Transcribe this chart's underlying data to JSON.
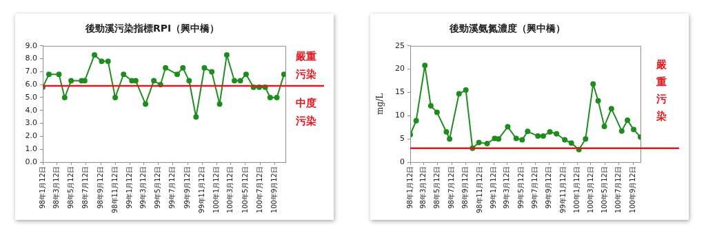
{
  "chart_data": [
    {
      "type": "line",
      "title": "後勁溪污染指標RPI（興中橋）",
      "color": "#1e8c1e",
      "marker": "circle",
      "grid": false,
      "legend": false,
      "x": [
        "2009-01-12",
        "2009-02-07",
        "2009-03-21",
        "2009-04-14",
        "2009-05-11",
        "2009-06-24",
        "2009-07-07",
        "2009-08-17",
        "2009-09-16",
        "2009-10-13",
        "2009-11-12",
        "2009-12-17",
        "2010-01-21",
        "2010-02-06",
        "2010-03-19",
        "2010-04-23",
        "2010-05-21",
        "2010-06-11",
        "2010-07-30",
        "2010-08-23",
        "2010-09-18",
        "2010-10-17",
        "2010-11-21",
        "2010-12-22",
        "2011-01-24",
        "2011-02-23",
        "2011-03-27",
        "2011-04-21",
        "2011-05-15",
        "2011-06-15",
        "2011-07-09",
        "2011-08-03",
        "2011-08-24",
        "2011-09-21",
        "2011-10-21"
      ],
      "values": [
        5.8,
        6.8,
        6.8,
        5.0,
        6.3,
        6.3,
        6.3,
        8.3,
        7.8,
        7.8,
        5.0,
        6.8,
        6.3,
        6.3,
        4.5,
        6.3,
        6.0,
        7.3,
        6.8,
        7.3,
        6.3,
        3.5,
        7.3,
        7.0,
        4.5,
        8.3,
        6.3,
        6.3,
        6.8,
        5.8,
        5.8,
        5.8,
        5.0,
        5.0,
        6.8
      ],
      "xlim": [
        "2009-01-12",
        "2011-10-27"
      ],
      "xticks": [
        {
          "value": "2009-01-12",
          "label": "98年1月12日"
        },
        {
          "value": "2009-03-12",
          "label": "98年3月12日"
        },
        {
          "value": "2009-05-12",
          "label": "98年5月12日"
        },
        {
          "value": "2009-07-12",
          "label": "98年7月12日"
        },
        {
          "value": "2009-09-12",
          "label": "98年9月12日"
        },
        {
          "value": "2009-11-12",
          "label": "98年11月12日"
        },
        {
          "value": "2010-01-12",
          "label": "99年1月12日"
        },
        {
          "value": "2010-03-12",
          "label": "99年3月12日"
        },
        {
          "value": "2010-05-12",
          "label": "99年5月12日"
        },
        {
          "value": "2010-07-12",
          "label": "99年7月12日"
        },
        {
          "value": "2010-09-12",
          "label": "99年9月12日"
        },
        {
          "value": "2010-11-12",
          "label": "99年11月12日"
        },
        {
          "value": "2011-01-12",
          "label": "100年1月12日"
        },
        {
          "value": "2011-03-12",
          "label": "100年3月12日"
        },
        {
          "value": "2011-05-12",
          "label": "100年5月12日"
        },
        {
          "value": "2011-07-12",
          "label": "100年7月12日"
        },
        {
          "value": "2011-09-12",
          "label": "100年9月12日"
        }
      ],
      "ylim": [
        0,
        9
      ],
      "yticks": [
        {
          "value": 0,
          "label": "0.0"
        },
        {
          "value": 1,
          "label": "1.0"
        },
        {
          "value": 2,
          "label": "2.0"
        },
        {
          "value": 3,
          "label": "3.0"
        },
        {
          "value": 4,
          "label": "4.0"
        },
        {
          "value": 5,
          "label": "5.0"
        },
        {
          "value": 6,
          "label": "6.0"
        },
        {
          "value": 7,
          "label": "7.0"
        },
        {
          "value": 8,
          "label": "8.0"
        },
        {
          "value": 9,
          "label": "9.0"
        }
      ],
      "ref_lines": [
        {
          "axis": "y",
          "value": 5.9,
          "color": "#e8141b"
        }
      ],
      "annotations": [
        "嚴重污染",
        "中度污染"
      ]
    },
    {
      "type": "line",
      "title": "後勁溪氨氮濃度（興中橋）",
      "ylabel": "mg/L",
      "color": "#1e8c1e",
      "marker": "circle",
      "grid": false,
      "legend": false,
      "x": [
        "2009-01-12",
        "2009-02-07",
        "2009-03-17",
        "2009-04-12",
        "2009-05-09",
        "2009-06-19",
        "2009-07-03",
        "2009-08-13",
        "2009-09-12",
        "2009-10-11",
        "2009-11-08",
        "2009-12-14",
        "2010-01-16",
        "2010-02-02",
        "2010-03-14",
        "2010-04-20",
        "2010-05-16",
        "2010-06-09",
        "2010-07-24",
        "2010-08-16",
        "2010-09-14",
        "2010-10-13",
        "2010-11-18",
        "2010-12-17",
        "2011-01-19",
        "2011-02-17",
        "2011-03-22",
        "2011-04-13",
        "2011-05-10",
        "2011-06-10",
        "2011-07-25",
        "2011-08-19",
        "2011-09-15",
        "2011-10-15"
      ],
      "values": [
        5.9,
        8.9,
        20.8,
        12.1,
        10.7,
        6.5,
        5.0,
        14.7,
        15.5,
        3.0,
        4.2,
        4.0,
        5.1,
        5.0,
        7.6,
        5.1,
        4.8,
        6.6,
        5.6,
        5.6,
        6.5,
        6.1,
        4.8,
        4.1,
        2.7,
        5.0,
        16.8,
        13.2,
        7.7,
        11.5,
        6.7,
        9.0,
        7.0,
        5.4
      ],
      "xlim": [
        "2009-01-12",
        "2011-10-15"
      ],
      "xticks": [
        {
          "value": "2009-01-12",
          "label": "98年1月12日"
        },
        {
          "value": "2009-03-12",
          "label": "98年3月12日"
        },
        {
          "value": "2009-05-12",
          "label": "98年5月12日"
        },
        {
          "value": "2009-07-12",
          "label": "98年7月12日"
        },
        {
          "value": "2009-09-12",
          "label": "98年9月12日"
        },
        {
          "value": "2009-11-12",
          "label": "98年11月12日"
        },
        {
          "value": "2010-01-12",
          "label": "99年1月12日"
        },
        {
          "value": "2010-03-12",
          "label": "99年3月12日"
        },
        {
          "value": "2010-05-12",
          "label": "99年5月12日"
        },
        {
          "value": "2010-07-12",
          "label": "99年7月12日"
        },
        {
          "value": "2010-09-12",
          "label": "99年9月12日"
        },
        {
          "value": "2010-11-12",
          "label": "99年11月12日"
        },
        {
          "value": "2011-01-12",
          "label": "100年1月12日"
        },
        {
          "value": "2011-03-12",
          "label": "100年3月12日"
        },
        {
          "value": "2011-05-12",
          "label": "100年5月12日"
        },
        {
          "value": "2011-07-12",
          "label": "100年7月12日"
        },
        {
          "value": "2011-09-12",
          "label": "100年9月12日"
        }
      ],
      "ylim": [
        0,
        25
      ],
      "yticks": [
        0,
        5,
        10,
        15,
        20,
        25
      ],
      "ref_lines": [
        {
          "axis": "y",
          "value": 3,
          "color": "#e8141b"
        }
      ],
      "annotations": [
        "嚴重污染"
      ]
    }
  ]
}
